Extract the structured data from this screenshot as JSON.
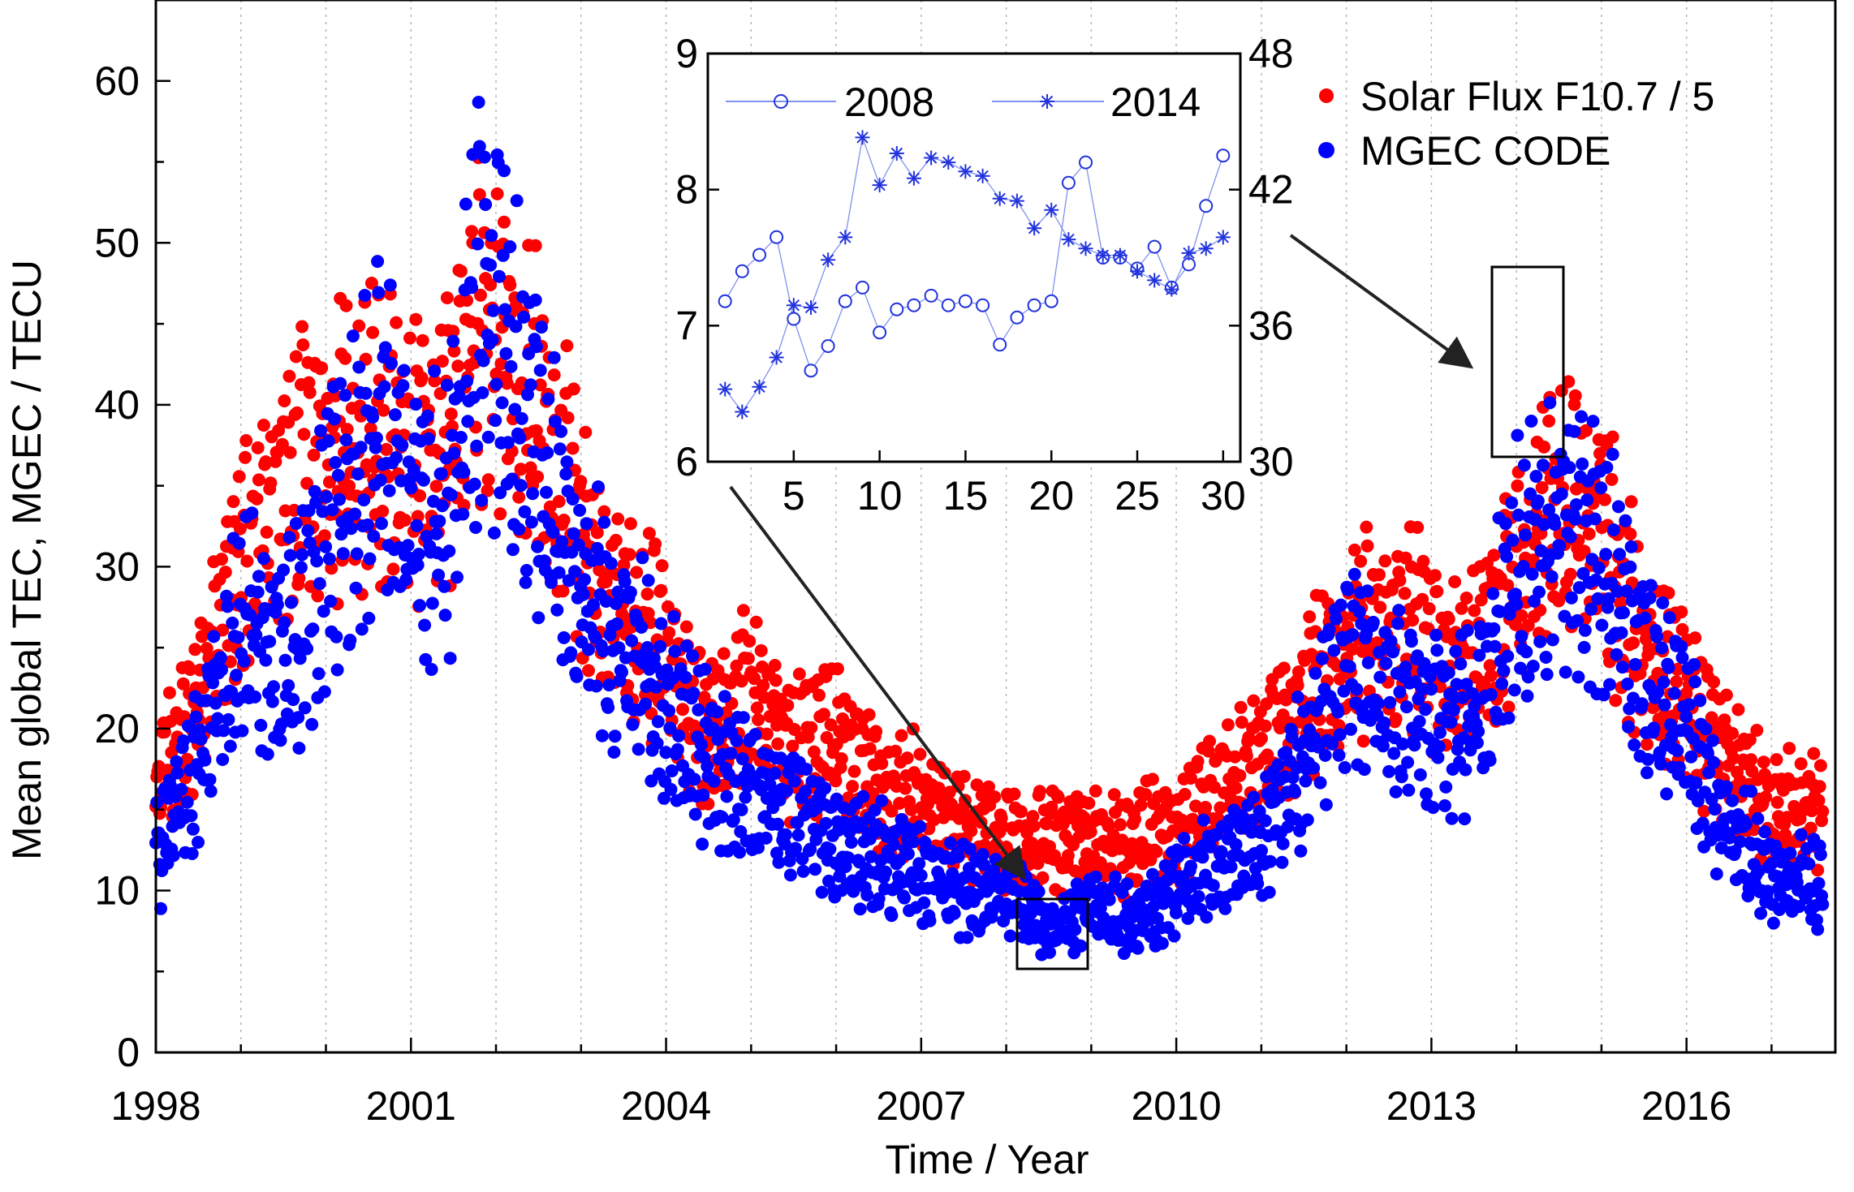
{
  "chart_data": [
    {
      "id": "main",
      "type": "scatter",
      "xlabel": "Time / Year",
      "ylabel": "Mean global TEC, MGEC / TECU",
      "xlim": [
        1998,
        2017.75
      ],
      "ylim": [
        0,
        65
      ],
      "xticks": [
        "1998",
        "2001",
        "2004",
        "2007",
        "2010",
        "2013",
        "2016"
      ],
      "yticks": [
        "0",
        "10",
        "20",
        "30",
        "40",
        "50",
        "60"
      ],
      "legend_position": "top-right",
      "series": [
        {
          "name": "Solar Flux F10.7 / 5",
          "color": "#ff0000",
          "anchors_x": [
            1998.0,
            1998.5,
            1999.0,
            1999.6,
            2000.0,
            2000.6,
            2001.0,
            2001.4,
            2001.8,
            2002.2,
            2002.8,
            2003.3,
            2003.8,
            2004.5,
            2005.0,
            2005.5,
            2006.0,
            2006.5,
            2007.0,
            2007.5,
            2008.0,
            2008.5,
            2009.0,
            2009.5,
            2010.0,
            2010.5,
            2011.0,
            2011.5,
            2012.0,
            2012.5,
            2013.0,
            2013.5,
            2014.0,
            2014.5,
            2015.0,
            2015.5,
            2016.0,
            2016.5,
            2017.0,
            2017.7
          ],
          "anchors_y": [
            16,
            22,
            30,
            35,
            37,
            38,
            36,
            38,
            46,
            43,
            35,
            28,
            26,
            20,
            22,
            19,
            19,
            16,
            16,
            14,
            13,
            13,
            13,
            13,
            14,
            16,
            18,
            22,
            25,
            27,
            25,
            24,
            30,
            34,
            32,
            25,
            22,
            18,
            15,
            15
          ]
        },
        {
          "name": "MGEC CODE",
          "color": "#0000ff",
          "anchors_x": [
            1998.0,
            1998.5,
            1999.0,
            1999.6,
            2000.0,
            2000.6,
            2001.0,
            2001.4,
            2001.8,
            2002.2,
            2002.8,
            2003.3,
            2003.8,
            2004.5,
            2005.0,
            2005.5,
            2006.0,
            2006.5,
            2007.0,
            2007.5,
            2008.0,
            2008.5,
            2009.0,
            2009.5,
            2010.0,
            2010.5,
            2011.0,
            2011.5,
            2012.0,
            2012.5,
            2013.0,
            2013.5,
            2014.0,
            2014.5,
            2015.0,
            2015.5,
            2016.0,
            2016.5,
            2017.0,
            2017.7
          ],
          "anchors_y": [
            12,
            18,
            26,
            25,
            32,
            38,
            34,
            32,
            46,
            42,
            31,
            26,
            23,
            18,
            16,
            15,
            13,
            12,
            11,
            10,
            10,
            7.5,
            9,
            8,
            10,
            12,
            13,
            18,
            24,
            22,
            21,
            20,
            30,
            33,
            30,
            24,
            20,
            14,
            11,
            10
          ]
        }
      ],
      "annotations": [
        "Box around 2008.4–2008.9 at low TEC",
        "Box around 2014 peak"
      ]
    },
    {
      "id": "inset",
      "type": "line",
      "xlim": [
        0,
        31
      ],
      "ylim": [
        6,
        9
      ],
      "ylim_right": [
        30,
        48
      ],
      "xticks": [
        "5",
        "10",
        "15",
        "20",
        "25",
        "30"
      ],
      "yticks": [
        "6",
        "7",
        "8",
        "9"
      ],
      "yticks_right": [
        "30",
        "36",
        "42",
        "48"
      ],
      "legend_position": "top",
      "series": [
        {
          "name": "2008",
          "marker": "circle",
          "axis": "left",
          "x": [
            1,
            2,
            3,
            4,
            5,
            6,
            7,
            8,
            9,
            10,
            11,
            12,
            13,
            14,
            15,
            16,
            17,
            18,
            19,
            20,
            21,
            22,
            23,
            24,
            25,
            26,
            27,
            28,
            29,
            30
          ],
          "y": [
            7.18,
            7.4,
            7.52,
            7.65,
            7.05,
            6.67,
            6.85,
            7.18,
            7.28,
            6.95,
            7.12,
            7.15,
            7.22,
            7.15,
            7.18,
            7.15,
            6.86,
            7.06,
            7.15,
            7.18,
            8.05,
            8.2,
            7.5,
            7.5,
            7.42,
            7.58,
            7.28,
            7.45,
            7.88,
            8.25
          ]
        },
        {
          "name": "2014",
          "marker": "asterisk",
          "axis": "right",
          "x": [
            1,
            2,
            3,
            4,
            5,
            6,
            7,
            8,
            9,
            10,
            11,
            12,
            13,
            14,
            15,
            16,
            17,
            18,
            19,
            20,
            21,
            22,
            23,
            24,
            25,
            26,
            27,
            28,
            29,
            30
          ],
          "y": [
            33.2,
            32.2,
            33.3,
            34.6,
            36.9,
            36.8,
            38.9,
            39.9,
            44.3,
            42.2,
            43.6,
            42.5,
            43.4,
            43.2,
            42.8,
            42.6,
            41.6,
            41.5,
            40.3,
            41.1,
            39.8,
            39.4,
            39.1,
            39.1,
            38.4,
            38.0,
            37.6,
            39.2,
            39.4,
            39.9
          ]
        }
      ]
    }
  ]
}
